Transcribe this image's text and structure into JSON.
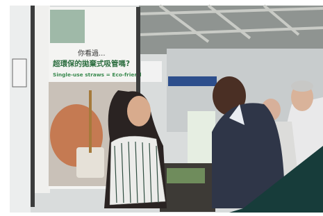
{
  "photo": {
    "banner": {
      "line1": "你看過...",
      "line2": "超環保的拋棄式吸管嗎?",
      "line3": "Single-use straws = Eco-friendly?"
    }
  }
}
